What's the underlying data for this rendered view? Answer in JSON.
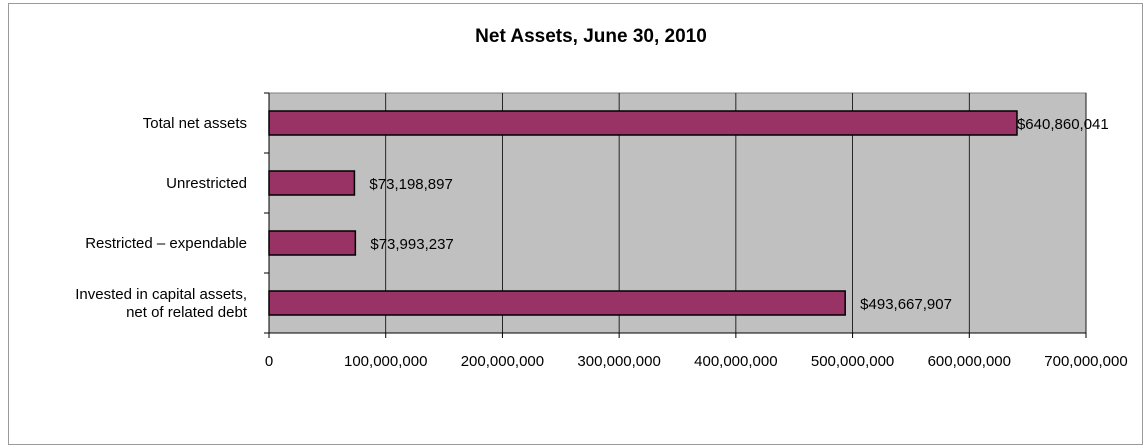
{
  "chart_data": {
    "type": "bar",
    "orientation": "horizontal",
    "title": "Net Assets, June 30, 2010",
    "xlabel": "",
    "ylabel": "",
    "xlim": [
      0,
      700000000
    ],
    "categories": [
      "Total net assets",
      "Unrestricted",
      "Restricted – expendable",
      "Invested in capital assets, net of related debt"
    ],
    "category_lines": [
      [
        "Total net assets"
      ],
      [
        "Unrestricted"
      ],
      [
        "Restricted – expendable"
      ],
      [
        "Invested in capital assets,",
        "net of related debt"
      ]
    ],
    "values": [
      640860041,
      73198897,
      73993237,
      493667907
    ],
    "data_labels": [
      "$640,860,041",
      "$73,198,897",
      "$73,993,237",
      "$493,667,907"
    ],
    "x_ticks": [
      0,
      100000000,
      200000000,
      300000000,
      400000000,
      500000000,
      600000000,
      700000000
    ],
    "x_tick_labels": [
      "0",
      "100,000,000",
      "200,000,000",
      "300,000,000",
      "400,000,000",
      "500,000,000",
      "600,000,000",
      "700,000,000"
    ],
    "grid": true,
    "legend": "none",
    "colors": {
      "bar": "#993366",
      "bar_border": "#000000",
      "plot_background": "#c0c0c0",
      "gridline": "#000000"
    }
  }
}
